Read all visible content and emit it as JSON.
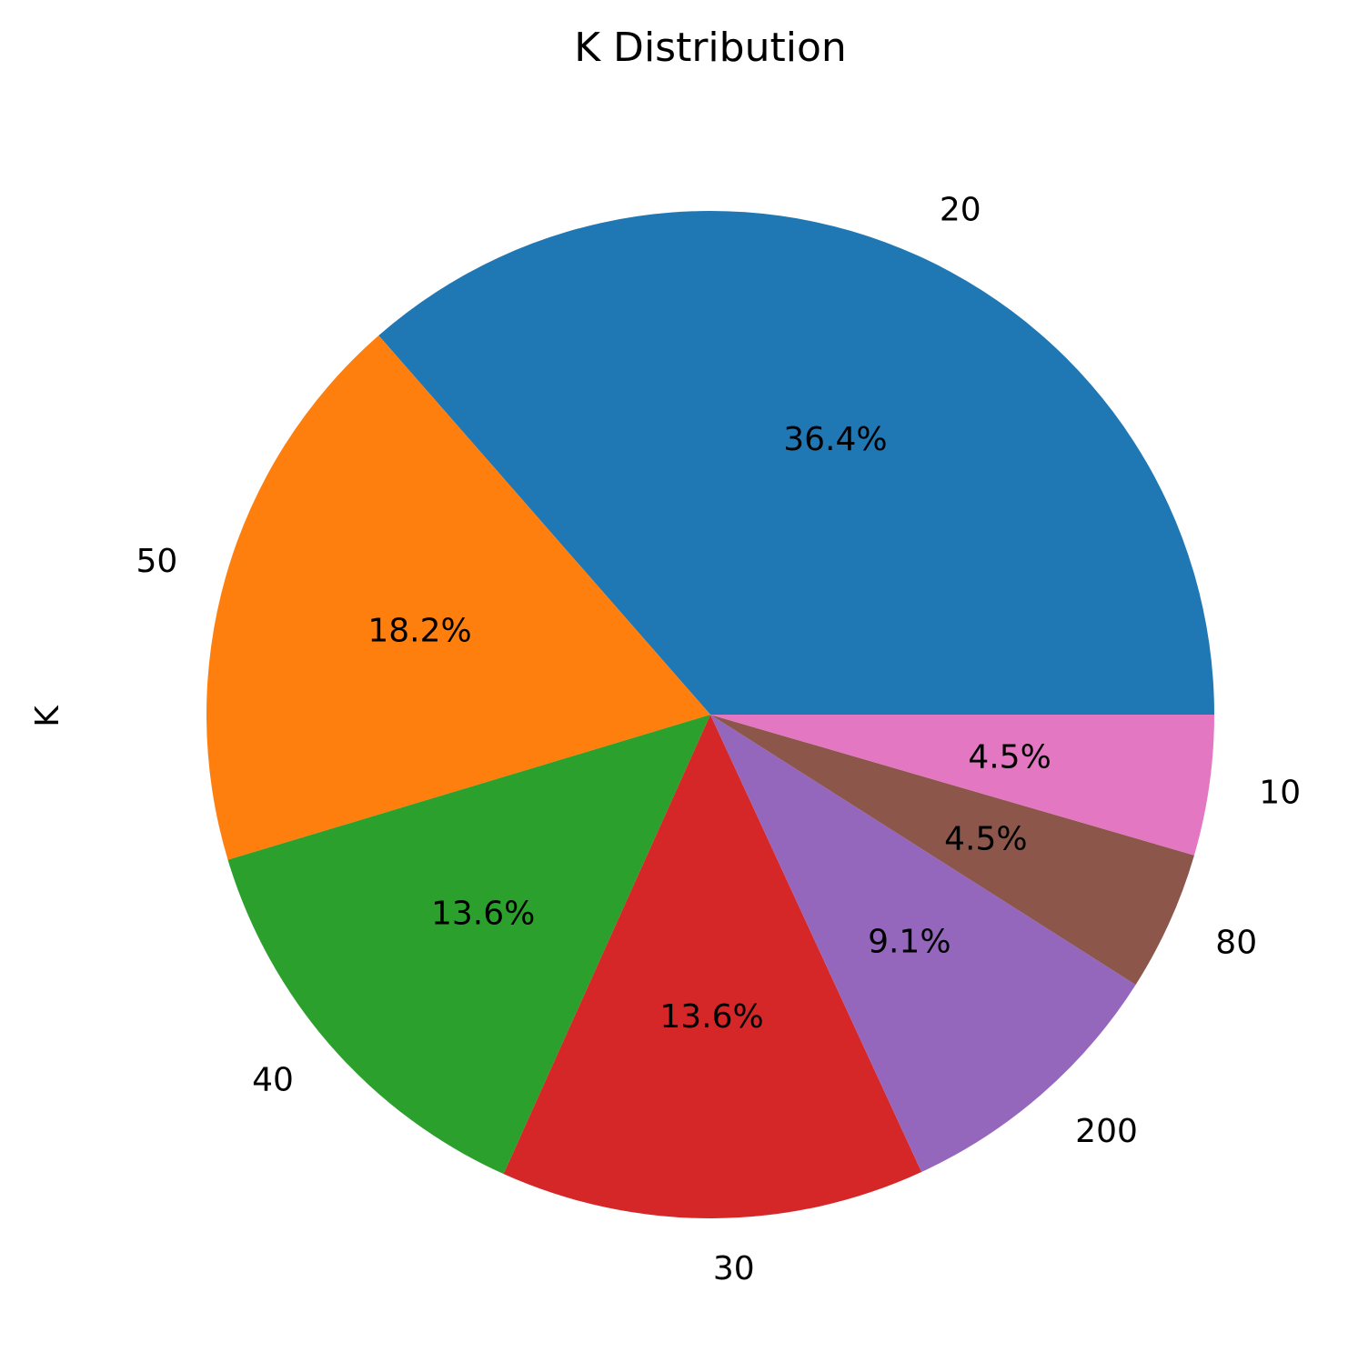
{
  "chart_data": {
    "type": "pie",
    "title": "K Distribution",
    "ylabel": "K",
    "start_angle_deg": 0,
    "direction": "counterclockwise",
    "slices": [
      {
        "label": "20",
        "value": 36.4,
        "pct_label": "36.4%",
        "color": "#1f77b4"
      },
      {
        "label": "50",
        "value": 18.2,
        "pct_label": "18.2%",
        "color": "#ff7f0e"
      },
      {
        "label": "40",
        "value": 13.6,
        "pct_label": "13.6%",
        "color": "#2ca02c"
      },
      {
        "label": "30",
        "value": 13.6,
        "pct_label": "13.6%",
        "color": "#d62728"
      },
      {
        "label": "200",
        "value": 9.1,
        "pct_label": "9.1%",
        "color": "#9467bd"
      },
      {
        "label": "80",
        "value": 4.5,
        "pct_label": "4.5%",
        "color": "#8c564b"
      },
      {
        "label": "10",
        "value": 4.5,
        "pct_label": "4.5%",
        "color": "#e377c2"
      }
    ]
  }
}
